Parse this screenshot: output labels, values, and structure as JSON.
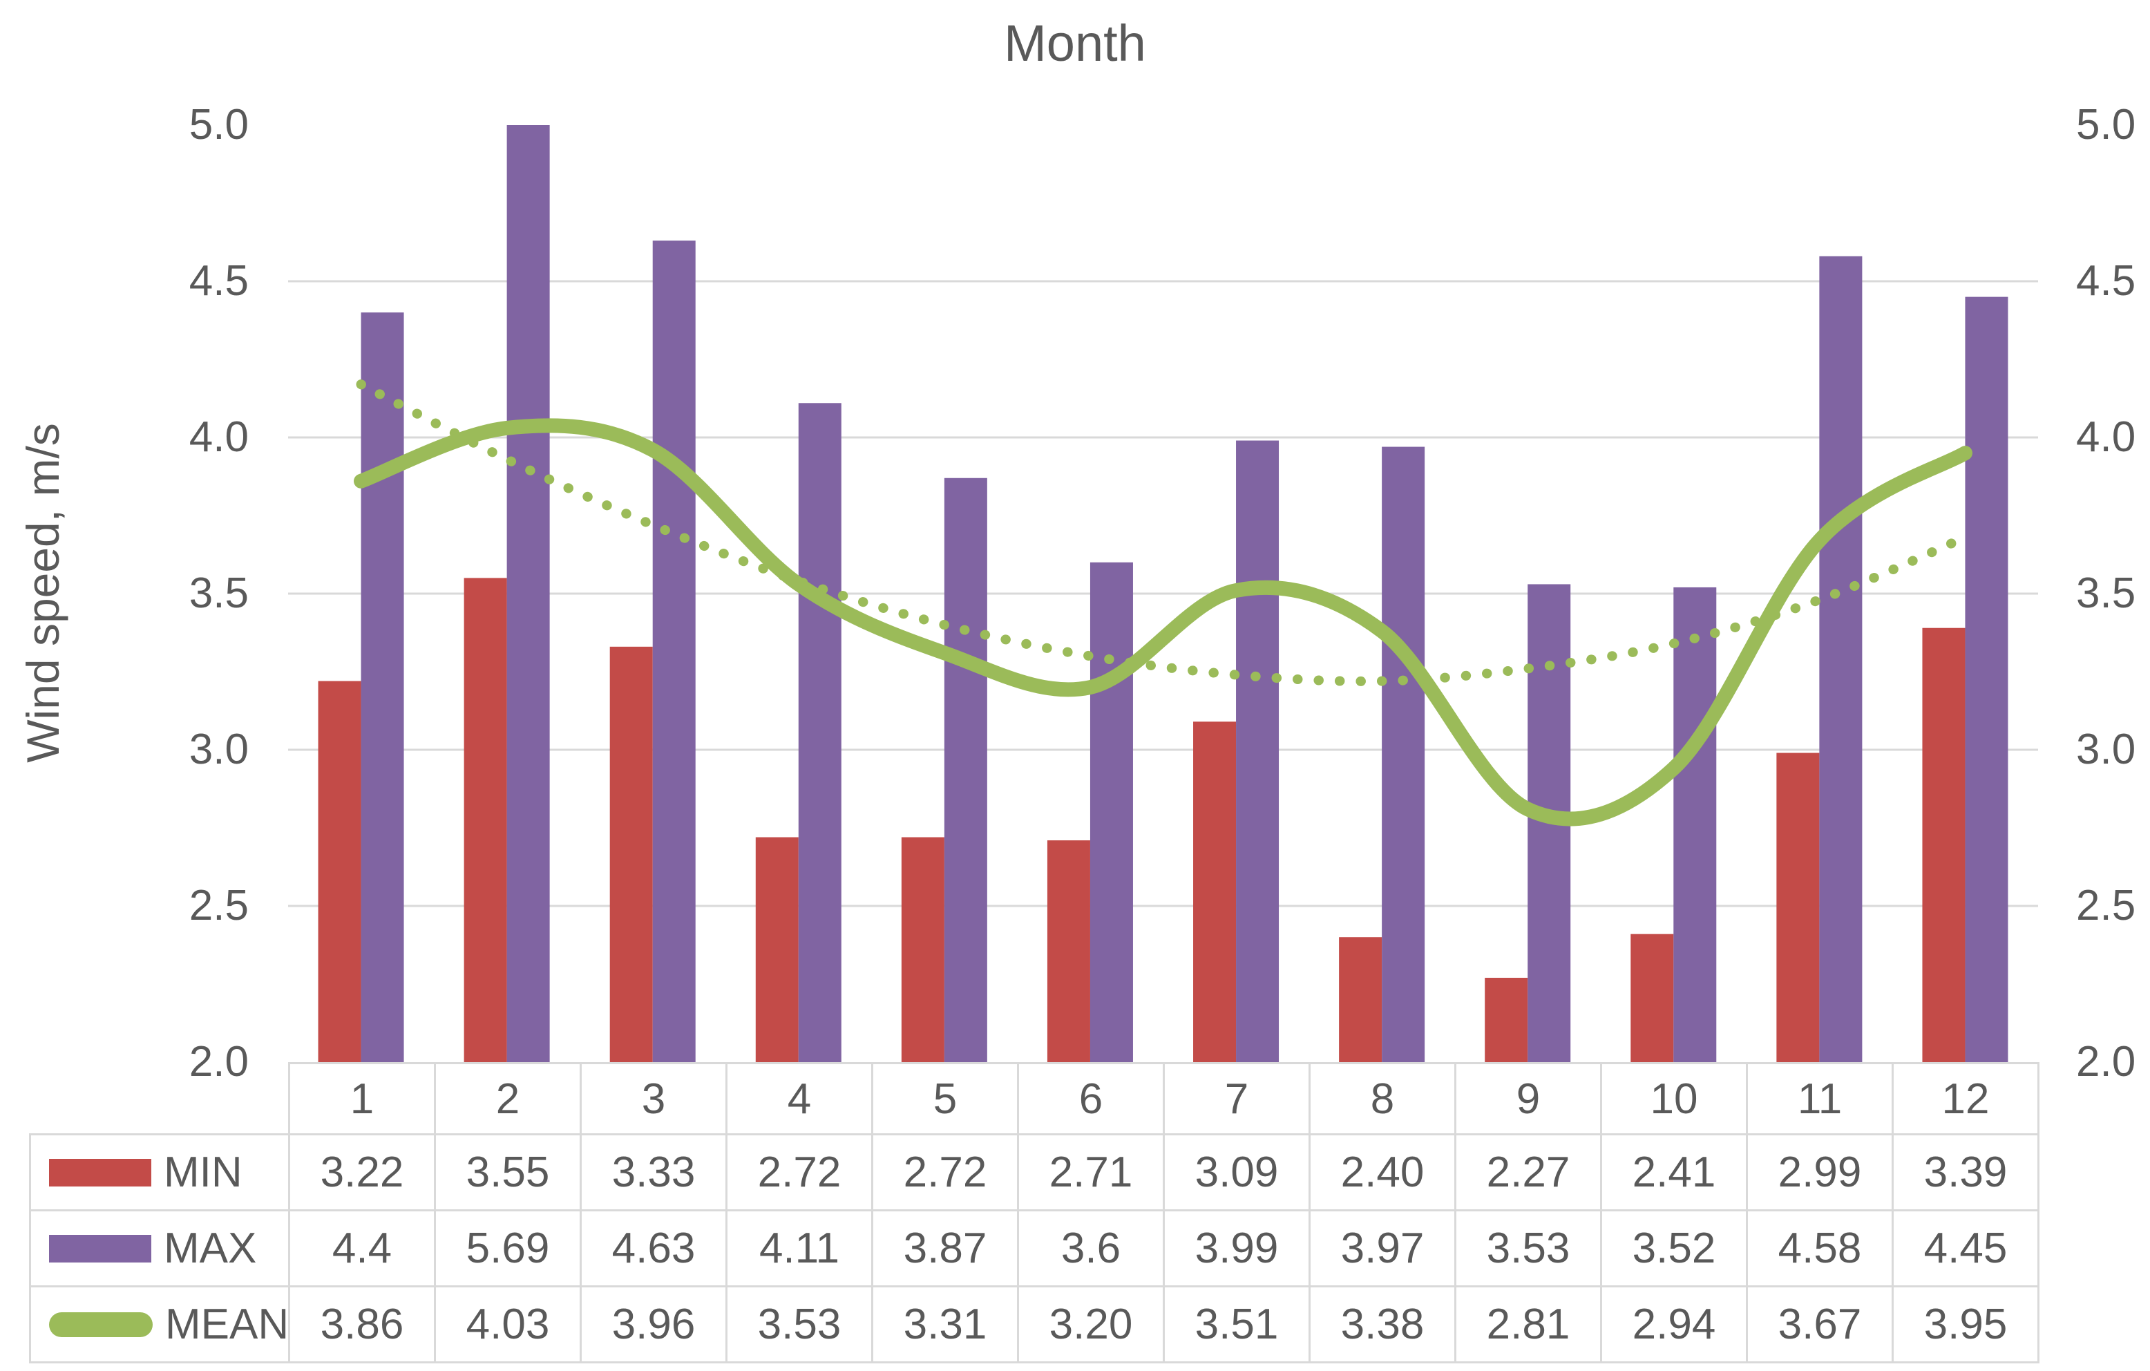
{
  "title": "Month",
  "y_axis": {
    "label": "Wind speed, m/s",
    "min": 2.0,
    "max": 5.0,
    "step": 0.5,
    "tick_labels": [
      "5.0",
      "4.5",
      "4.0",
      "3.5",
      "3.0",
      "2.5",
      "2.0"
    ],
    "tick_values": [
      5.0,
      4.5,
      4.0,
      3.5,
      3.0,
      2.5,
      2.0
    ],
    "gridline_values": [
      4.5,
      4.0,
      3.5,
      3.0,
      2.5
    ],
    "secondary_axis_mirrored": true
  },
  "colors": {
    "min_bar": "#C34B48",
    "max_bar": "#8064A2",
    "mean_line": "#9BBB59",
    "gridline": "#D9D9D9",
    "table_border": "#D9D9D9",
    "text": "#595959"
  },
  "chart_data": {
    "type": "bar",
    "subtype": "grouped columns with smooth line overlay and dotted trendline",
    "title": "Month",
    "xlabel": "",
    "ylabel": "Wind speed, m/s",
    "ylim": [
      2.0,
      5.0
    ],
    "grid": true,
    "legend_position": "table-left",
    "categories": [
      "1",
      "2",
      "3",
      "4",
      "5",
      "6",
      "7",
      "8",
      "9",
      "10",
      "11",
      "12"
    ],
    "series": [
      {
        "name": "MIN",
        "type": "column",
        "color": "#C34B48",
        "values": [
          3.22,
          3.55,
          3.33,
          2.72,
          2.72,
          2.71,
          3.09,
          2.4,
          2.27,
          2.41,
          2.99,
          3.39
        ]
      },
      {
        "name": "MAX",
        "type": "column",
        "color": "#8064A2",
        "clipped_at_axis_max": [
          2
        ],
        "values": [
          4.4,
          5.69,
          4.63,
          4.11,
          3.87,
          3.6,
          3.99,
          3.97,
          3.53,
          3.52,
          4.58,
          4.45
        ]
      },
      {
        "name": "MEAN",
        "type": "smooth-line",
        "color": "#9BBB59",
        "values": [
          3.86,
          4.03,
          3.96,
          3.53,
          3.31,
          3.2,
          3.51,
          3.38,
          2.81,
          2.94,
          3.67,
          3.95
        ]
      },
      {
        "name": "MEAN trendline (dotted, values estimated from pixels)",
        "type": "smooth-dotted-line",
        "color": "#9BBB59",
        "values": [
          4.17,
          3.93,
          3.72,
          3.54,
          3.4,
          3.3,
          3.24,
          3.22,
          3.26,
          3.34,
          3.48,
          3.68
        ]
      }
    ]
  },
  "table": {
    "month_header": [
      "1",
      "2",
      "3",
      "4",
      "5",
      "6",
      "7",
      "8",
      "9",
      "10",
      "11",
      "12"
    ],
    "rows": [
      {
        "label": "MIN",
        "swatch": "bar",
        "color": "#C34B48",
        "cells": [
          "3.22",
          "3.55",
          "3.33",
          "2.72",
          "2.72",
          "2.71",
          "3.09",
          "2.40",
          "2.27",
          "2.41",
          "2.99",
          "3.39"
        ]
      },
      {
        "label": "MAX",
        "swatch": "bar",
        "color": "#8064A2",
        "cells": [
          "4.4",
          "5.69",
          "4.63",
          "4.11",
          "3.87",
          "3.6",
          "3.99",
          "3.97",
          "3.53",
          "3.52",
          "4.58",
          "4.45"
        ]
      },
      {
        "label": "MEAN",
        "swatch": "line",
        "color": "#9BBB59",
        "cells": [
          "3.86",
          "4.03",
          "3.96",
          "3.53",
          "3.31",
          "3.20",
          "3.51",
          "3.38",
          "2.81",
          "2.94",
          "3.67",
          "3.95"
        ]
      }
    ]
  }
}
